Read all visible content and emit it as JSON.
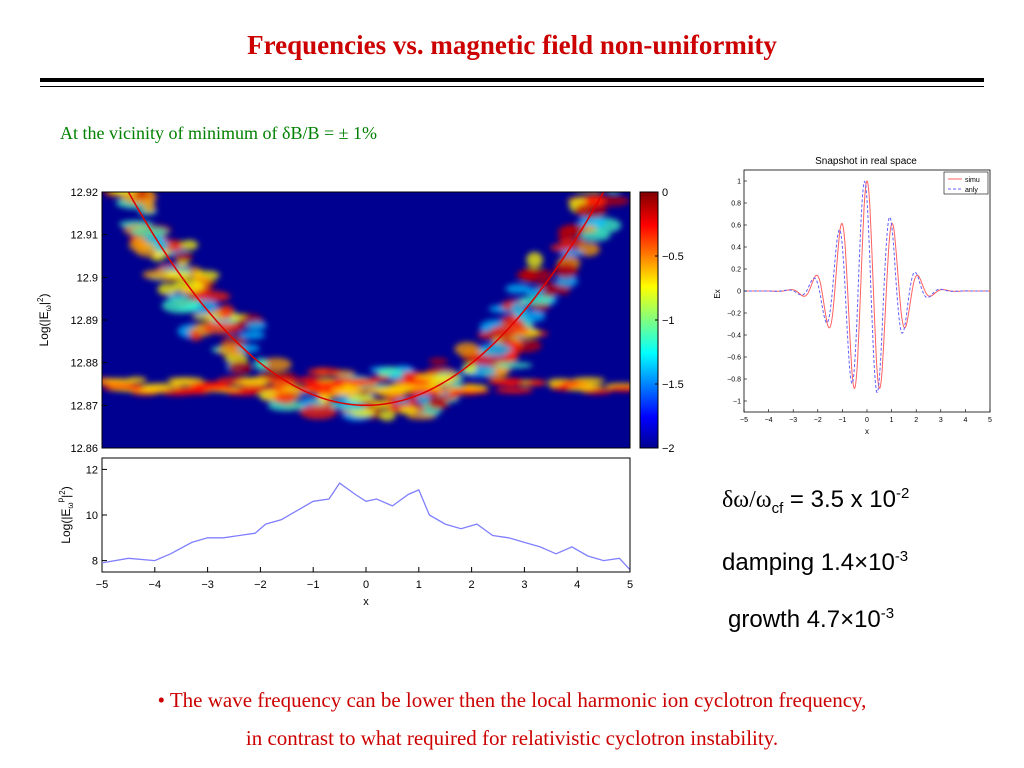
{
  "slide": {
    "title": "Frequencies vs. magnetic field non-uniformity",
    "subtitle": "At the vicinity of minimum of δB/B  = ± 1%",
    "stats": {
      "freq_shift_sym": "δω/ω",
      "freq_shift_sub": "cf",
      "freq_shift_val": " = 3.5 x 10",
      "freq_shift_exp": "-2",
      "damping_text": "damping 1.4×10",
      "damping_exp": "-3",
      "growth_text": "growth 4.7×10",
      "growth_exp": "-3"
    },
    "bullet_line1": "• The wave frequency can be lower then the local harmonic ion cyclotron frequency,",
    "bullet_line2": "in contrast to what required for relativistic cyclotron instability."
  },
  "colors": {
    "title": "#cc0000",
    "subtitle": "#008000",
    "background_field": "#000090",
    "red_curve": "#e00000",
    "line_series": "#8080ff"
  },
  "chart_data": [
    {
      "type": "heatmap",
      "ylabel_main": "Log(|E",
      "ylabel_sub": "ω",
      "ylabel_tail": "|",
      "ylabel_sup": "2",
      "ylabel_close": ")",
      "ylim": [
        12.86,
        12.92
      ],
      "xlim": [
        -5,
        5
      ],
      "yticks": [
        "12.92",
        "12.91",
        "12.9",
        "12.89",
        "12.88",
        "12.87",
        "12.86"
      ],
      "colorbar": {
        "range": [
          -2,
          0
        ],
        "ticks": [
          "0",
          "−0.5",
          "−1",
          "−1.5",
          "−2"
        ]
      },
      "overlay_curve": {
        "description_color": "red",
        "vertex_x": 0,
        "vertex_y": 12.87,
        "y_at_x_pm4_5": 12.92
      }
    },
    {
      "type": "line",
      "ylabel_main": "Log(|E",
      "ylabel_sub": "ω",
      "ylabel_sup": "p",
      "ylabel_tail": "|",
      "ylabel_sup2": "2",
      "ylabel_close": ")",
      "xlabel": "x",
      "xlim": [
        -5,
        5
      ],
      "ylim": [
        7.5,
        12.5
      ],
      "xticks": [
        "−5",
        "−4",
        "−3",
        "−2",
        "−1",
        "0",
        "1",
        "2",
        "3",
        "4",
        "5"
      ],
      "yticks": [
        "12",
        "10",
        "8"
      ],
      "x": [
        -5,
        -4.5,
        -4,
        -3.7,
        -3.3,
        -3,
        -2.7,
        -2.4,
        -2.1,
        -1.9,
        -1.6,
        -1.3,
        -1,
        -0.7,
        -0.5,
        -0.2,
        0,
        0.2,
        0.5,
        0.8,
        1,
        1.2,
        1.5,
        1.8,
        2.1,
        2.4,
        2.7,
        3,
        3.3,
        3.6,
        3.9,
        4.2,
        4.5,
        4.8,
        5
      ],
      "y": [
        7.9,
        8.1,
        8.0,
        8.3,
        8.8,
        9.0,
        9.0,
        9.1,
        9.2,
        9.6,
        9.8,
        10.2,
        10.6,
        10.7,
        11.4,
        10.9,
        10.6,
        10.7,
        10.4,
        10.9,
        11.1,
        10.0,
        9.6,
        9.4,
        9.6,
        9.1,
        9.0,
        8.8,
        8.6,
        8.3,
        8.6,
        8.2,
        8.0,
        8.1,
        7.6
      ]
    },
    {
      "type": "line",
      "title": "Snapshot in real space",
      "xlabel": "x",
      "ylabel": "Ex",
      "xlim": [
        -5,
        5
      ],
      "ylim": [
        -1.1,
        1.1
      ],
      "xticks": [
        "−5",
        "−4",
        "−3",
        "−2",
        "−1",
        "0",
        "1",
        "2",
        "3",
        "4",
        "5"
      ],
      "yticks": [
        "1",
        "0.8",
        "0.6",
        "0.4",
        "0.2",
        "0",
        "−0.2",
        "−0.4",
        "−0.6",
        "−0.8",
        "−1"
      ],
      "legend": {
        "position": "top-right",
        "entries": [
          "simu",
          "anly"
        ]
      },
      "series": [
        {
          "name": "simu",
          "color": "#ff6060",
          "style": "solid",
          "envelope_peak": 1.0,
          "wavenumber": 12
        },
        {
          "name": "anly",
          "color": "#6060ff",
          "style": "dashed",
          "envelope_peak": 1.0,
          "wavenumber": 12
        }
      ]
    }
  ]
}
